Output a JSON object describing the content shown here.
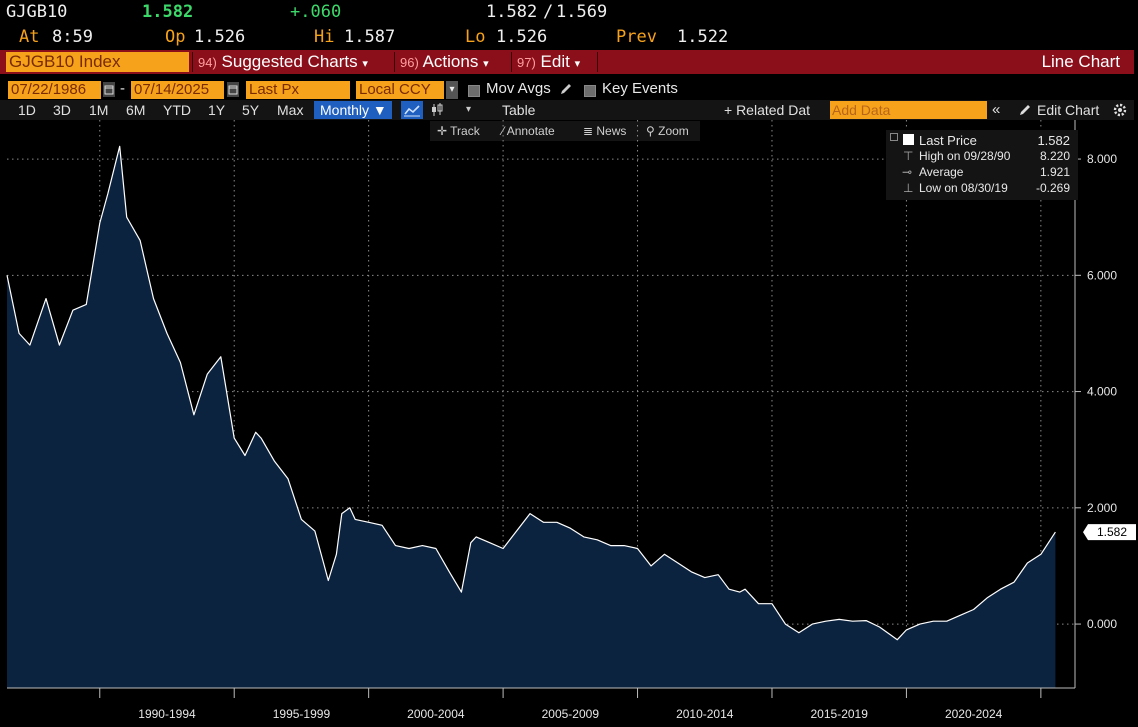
{
  "quote": {
    "ticker": "GJGB10",
    "last": "1.582",
    "change": "+.060",
    "bid_ask": "1.582",
    "slash": "/",
    "ask": "1.569",
    "at_label": "At",
    "at_time": "8:59",
    "op_label": "Op",
    "op": "1.526",
    "hi_label": "Hi",
    "hi": "1.587",
    "lo_label": "Lo",
    "lo": "1.526",
    "prev_label": "Prev",
    "prev": "1.522"
  },
  "menubar": {
    "security": "GJGB10 Index",
    "suggested_num": "94)",
    "suggested": "Suggested Charts",
    "actions_num": "96)",
    "actions": "Actions",
    "edit_num": "97)",
    "edit": "Edit",
    "chart_type": "Line Chart",
    "dropdown_glyph": "▾"
  },
  "controls": {
    "start_date": "07/22/1986",
    "dash": "-",
    "end_date": "07/14/2025",
    "field": "Last Px",
    "currency": "Local CCY",
    "mov_avgs": "Mov Avgs",
    "key_events": "Key Events"
  },
  "toolbar": {
    "ranges": [
      "1D",
      "3D",
      "1M",
      "6M",
      "YTD",
      "1Y",
      "5Y",
      "Max"
    ],
    "frequency": "Monthly ▼",
    "table": "Table",
    "related": "+ Related Dat",
    "add_data_placeholder": "Add Data",
    "edit_chart": "Edit Chart"
  },
  "tools": {
    "track": "Track",
    "annotate": "Annotate",
    "news": "News",
    "zoom": "Zoom"
  },
  "legend": {
    "last_label": "Last Price",
    "last_value": "1.582",
    "high_label": "High on 09/28/90",
    "high_value": "8.220",
    "avg_label": "Average",
    "avg_value": "1.921",
    "low_label": "Low on 08/30/19",
    "low_value": "-0.269"
  },
  "colors": {
    "accent_orange": "#f7a21b",
    "menubar_red": "#8b0f1a",
    "area_fill": "#0c2340",
    "line": "#ffffff",
    "up_green": "#3cd96a",
    "active_blue": "#1f5fbf"
  },
  "chart_data": {
    "type": "area",
    "series": [
      {
        "x": [
          1986.55,
          1987.0,
          1987.4,
          1988.0,
          1988.5,
          1989.0,
          1989.5,
          1990.0,
          1990.3,
          1990.74,
          1991.0,
          1991.5,
          1992.0,
          1992.5,
          1993.0,
          1993.5,
          1994.0,
          1994.5,
          1995.0,
          1995.4,
          1995.8,
          1996.0,
          1996.5,
          1997.0,
          1997.5,
          1998.0,
          1998.5,
          1998.8,
          1999.0,
          1999.3,
          1999.5,
          2000.0,
          2000.5,
          2001.0,
          2001.5,
          2002.0,
          2002.5,
          2003.0,
          2003.45,
          2003.8,
          2004.0,
          2004.5,
          2005.0,
          2005.5,
          2006.0,
          2006.5,
          2007.0,
          2007.5,
          2008.0,
          2008.5,
          2009.0,
          2009.5,
          2010.0,
          2010.5,
          2011.0,
          2011.5,
          2012.0,
          2012.5,
          2013.0,
          2013.4,
          2013.8,
          2014.0,
          2014.5,
          2015.0,
          2015.5,
          2016.0,
          2016.5,
          2017.0,
          2017.5,
          2018.0,
          2018.5,
          2019.0,
          2019.66,
          2020.0,
          2020.5,
          2021.0,
          2021.5,
          2022.0,
          2022.5,
          2023.0,
          2023.5,
          2024.0,
          2024.5,
          2025.0,
          2025.54
        ],
        "y": [
          6.0,
          5.0,
          4.8,
          5.6,
          4.8,
          5.4,
          5.5,
          6.9,
          7.4,
          8.22,
          7.0,
          6.6,
          5.6,
          5.0,
          4.5,
          3.6,
          4.3,
          4.6,
          3.2,
          2.9,
          3.3,
          3.2,
          2.8,
          2.5,
          1.8,
          1.6,
          0.75,
          1.2,
          1.9,
          2.0,
          1.8,
          1.75,
          1.7,
          1.35,
          1.3,
          1.35,
          1.3,
          0.9,
          0.55,
          1.4,
          1.5,
          1.4,
          1.3,
          1.6,
          1.9,
          1.75,
          1.75,
          1.65,
          1.5,
          1.45,
          1.35,
          1.35,
          1.3,
          1.0,
          1.2,
          1.05,
          0.9,
          0.8,
          0.85,
          0.6,
          0.55,
          0.6,
          0.35,
          0.35,
          0.0,
          -0.15,
          0.0,
          0.05,
          0.08,
          0.05,
          0.06,
          -0.05,
          -0.269,
          -0.1,
          0.0,
          0.05,
          0.05,
          0.15,
          0.25,
          0.45,
          0.6,
          0.72,
          1.05,
          1.2,
          1.582
        ]
      }
    ],
    "ylim": [
      -1.1,
      8.5
    ],
    "y_ticks": [
      "8.000",
      "6.000",
      "4.000",
      "2.000",
      "0.000"
    ],
    "y_tick_values": [
      8,
      6,
      4,
      2,
      0
    ],
    "x_tick_labels": [
      "1990-1994",
      "1995-1999",
      "2000-2004",
      "2005-2009",
      "2010-2014",
      "2015-2019",
      "2020-2024"
    ],
    "x_tick_centers": [
      1992.5,
      1997.5,
      2002.5,
      2007.5,
      2012.5,
      2017.5,
      2022.5
    ],
    "x_bounds": [
      1990,
      1995,
      2000,
      2005,
      2010,
      2015,
      2020,
      2025
    ],
    "xlim": [
      1986.55,
      2025.6
    ],
    "last_label": "1.582",
    "grid": true
  }
}
